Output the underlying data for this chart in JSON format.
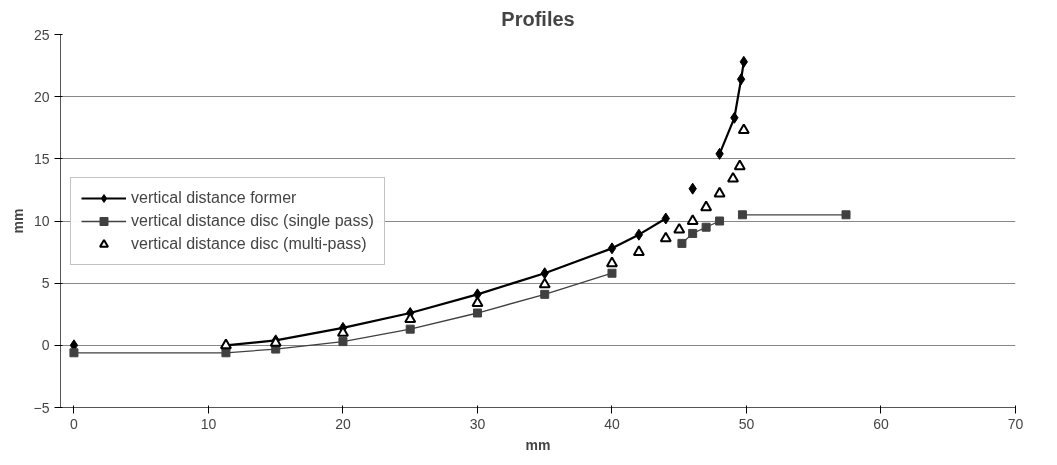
{
  "chart_data": {
    "type": "line",
    "title": "Profiles",
    "xlabel": "mm",
    "ylabel": "mm",
    "xlim": [
      -1,
      70
    ],
    "ylim": [
      -5,
      25
    ],
    "xticks": [
      0,
      10,
      20,
      30,
      40,
      50,
      60,
      70
    ],
    "yticks": [
      -5,
      0,
      5,
      10,
      15,
      20,
      25
    ],
    "grid": "y",
    "legend": "left",
    "series": [
      {
        "name": "vertical distance former",
        "marker": "diamond",
        "line_style": "solid",
        "color": "#000000",
        "x": [
          11.3,
          15,
          20,
          25,
          30,
          35,
          40,
          42,
          44
        ],
        "values": [
          0,
          0.4,
          1.4,
          2.6,
          4.1,
          5.8,
          7.8,
          8.9,
          10.2
        ]
      },
      {
        "type": "scatter",
        "marker": "diamond",
        "color": "#000000",
        "x": [
          0,
          46
        ],
        "values": [
          0,
          12.6
        ]
      },
      {
        "marker": "diamond",
        "line_style": "solid",
        "color": "#000000",
        "x": [
          48,
          49.1,
          49.6,
          49.8
        ],
        "values": [
          15.4,
          18.3,
          21.4,
          22.8
        ]
      },
      {
        "name": "vertical distance disc (single pass)",
        "marker": "square",
        "line_style": "solid",
        "color": "#404040",
        "x": [
          0,
          11.3,
          15,
          20,
          25,
          30,
          35,
          40
        ],
        "values": [
          -0.6,
          -0.6,
          -0.3,
          0.3,
          1.3,
          2.6,
          4.1,
          5.8
        ]
      },
      {
        "marker": "square",
        "line_style": "solid",
        "color": "#404040",
        "x": [
          45.2,
          46,
          47,
          48
        ],
        "values": [
          8.2,
          9.0,
          9.5,
          10.0
        ]
      },
      {
        "marker": "square",
        "line_style": "solid",
        "color": "#404040",
        "x": [
          49.7,
          57.4
        ],
        "values": [
          10.5,
          10.5
        ]
      },
      {
        "name": "vertical distance disc (multi-pass)",
        "type": "scatter",
        "marker": "triangle",
        "color": "#000000",
        "x": [
          11.3,
          15,
          20,
          25,
          30,
          35,
          40,
          42,
          44,
          45,
          46,
          47,
          48,
          49,
          49.5,
          49.8
        ],
        "values": [
          0,
          0.2,
          1.0,
          2.1,
          3.4,
          4.9,
          6.6,
          7.5,
          8.6,
          9.3,
          10.0,
          11.1,
          12.2,
          13.4,
          14.4,
          17.3
        ]
      }
    ]
  }
}
